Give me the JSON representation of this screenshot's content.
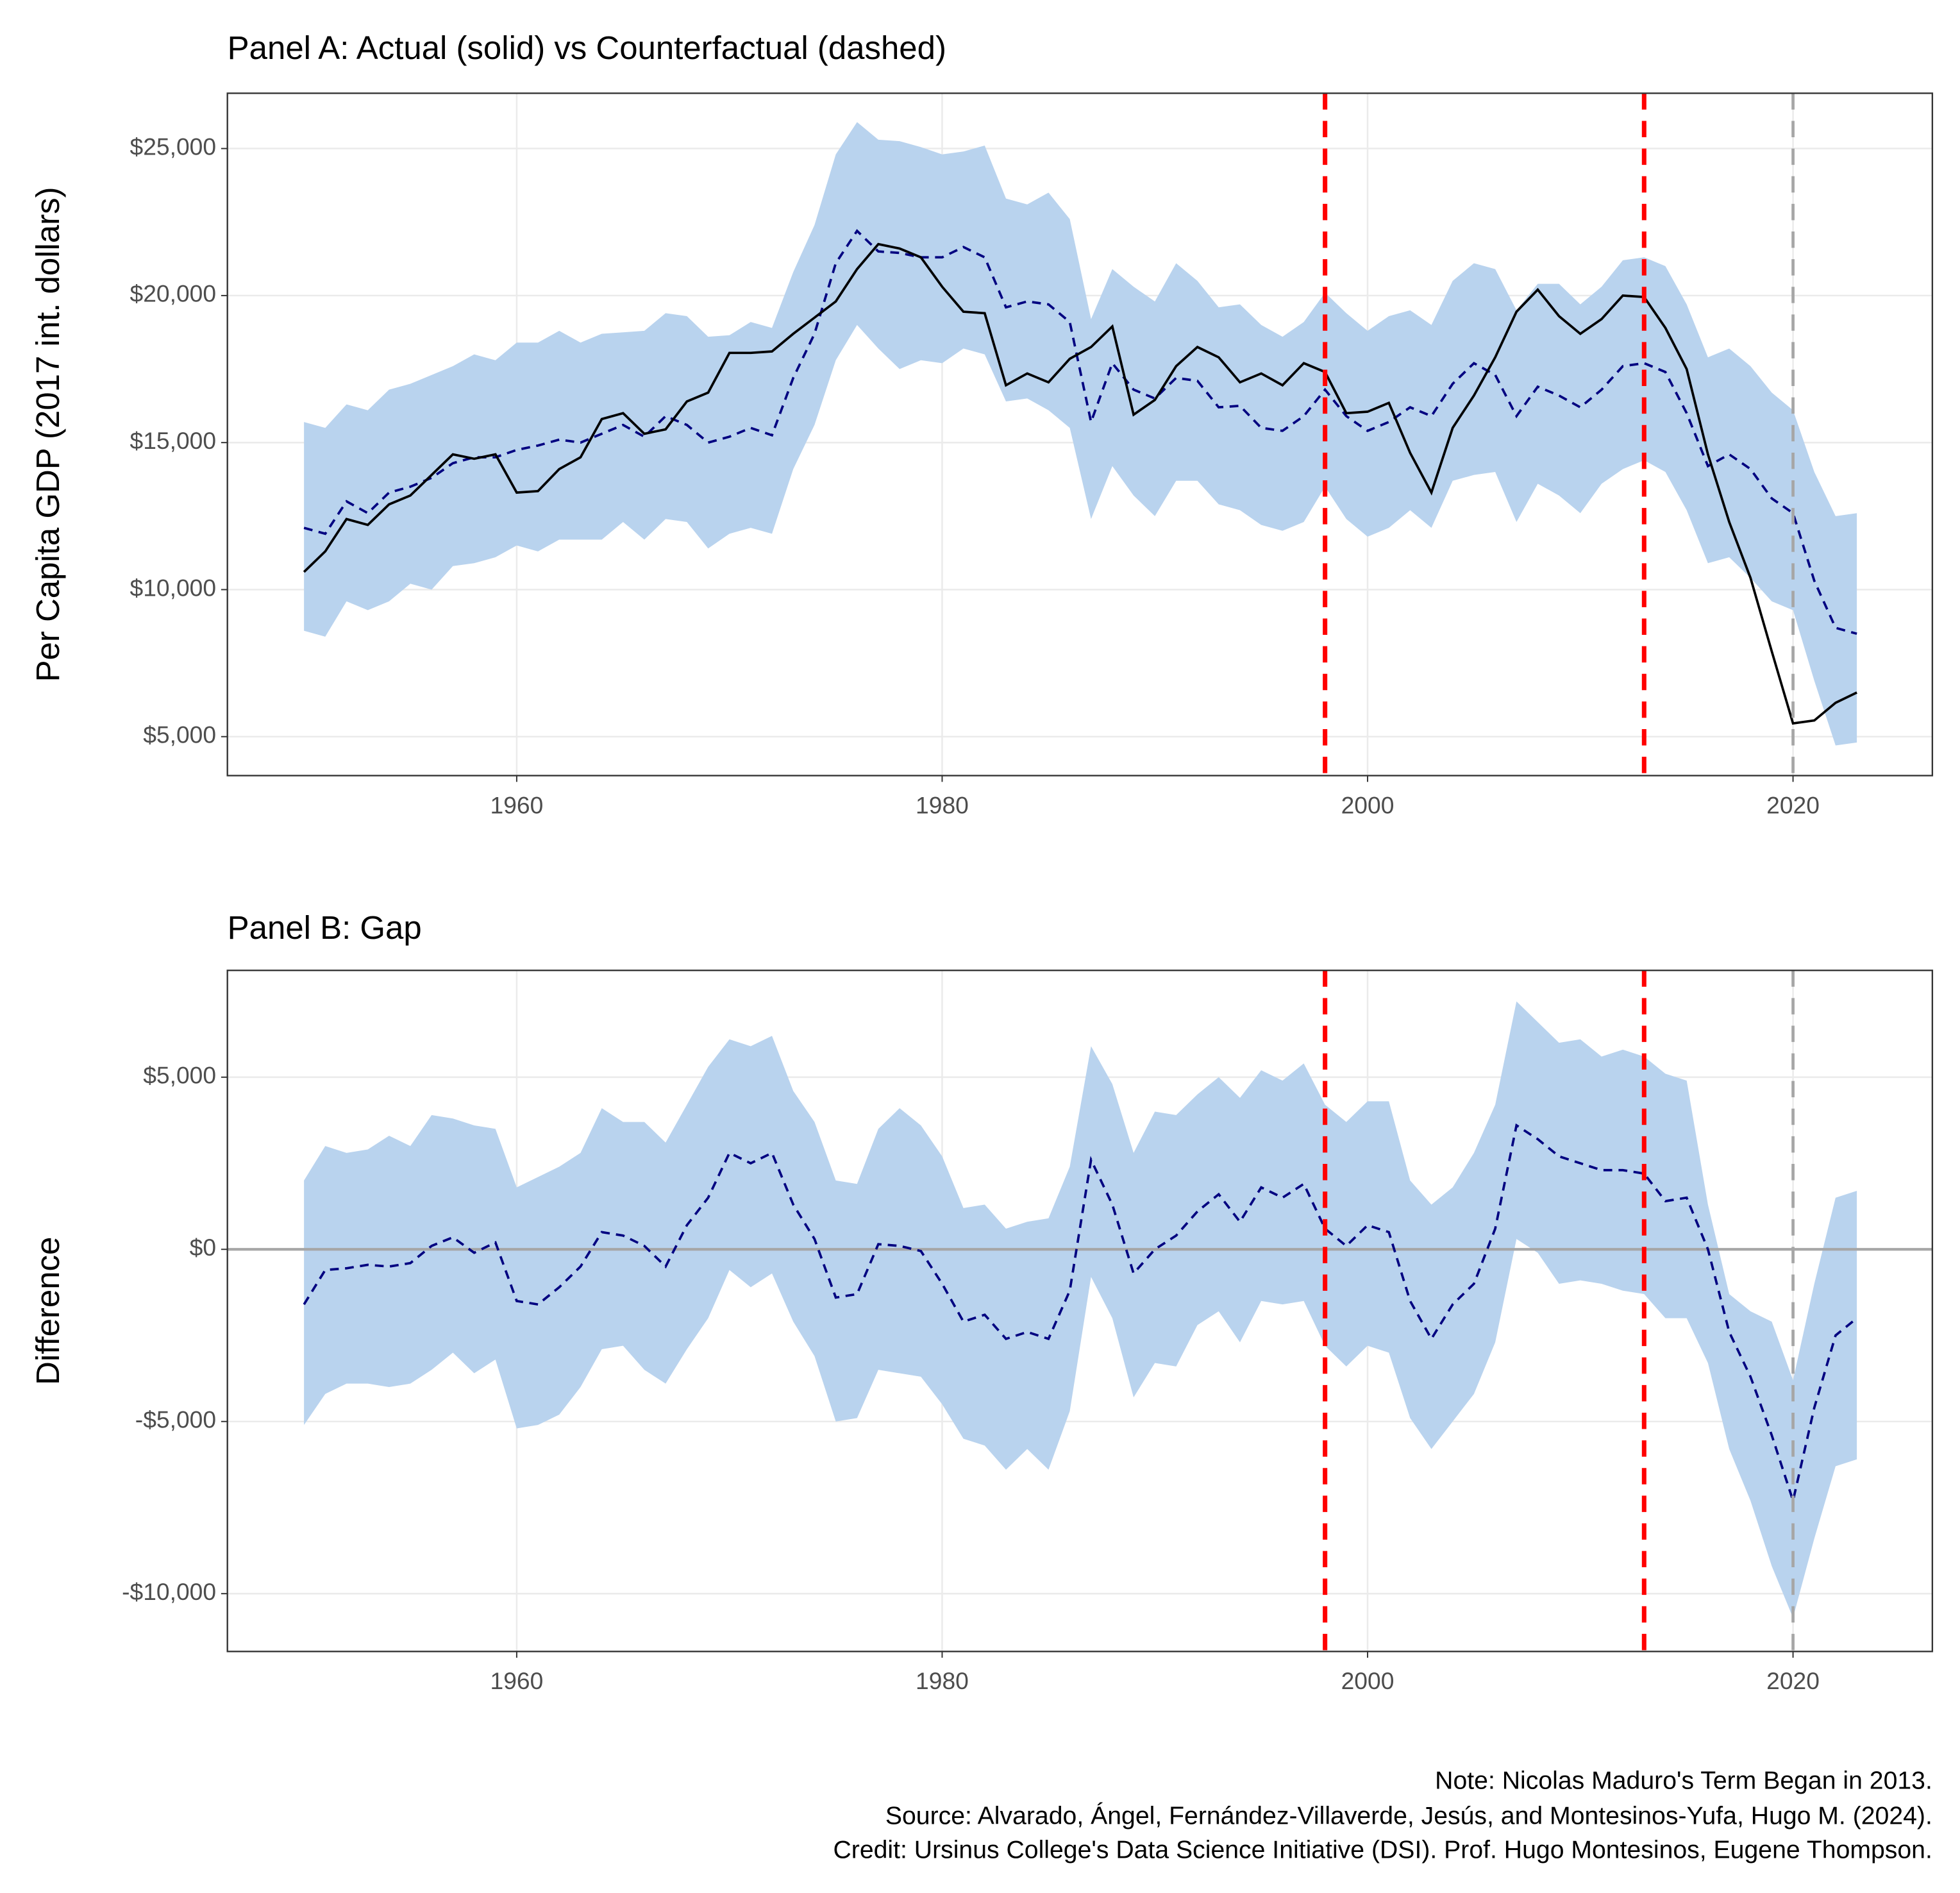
{
  "chart_data": [
    {
      "type": "line",
      "title": "Panel A: Actual (solid) vs Counterfactual (dashed)",
      "y_label": "Per Capita GDP (2017 int. dollars)",
      "x": [
        1950,
        1951,
        1952,
        1953,
        1954,
        1955,
        1956,
        1957,
        1958,
        1959,
        1960,
        1961,
        1962,
        1963,
        1964,
        1965,
        1966,
        1967,
        1968,
        1969,
        1970,
        1971,
        1972,
        1973,
        1974,
        1975,
        1976,
        1977,
        1978,
        1979,
        1980,
        1981,
        1982,
        1983,
        1984,
        1985,
        1986,
        1987,
        1988,
        1989,
        1990,
        1991,
        1992,
        1993,
        1994,
        1995,
        1996,
        1997,
        1998,
        1999,
        2000,
        2001,
        2002,
        2003,
        2004,
        2005,
        2006,
        2007,
        2008,
        2009,
        2010,
        2011,
        2012,
        2013,
        2014,
        2015,
        2016,
        2017,
        2018,
        2019,
        2020,
        2021,
        2022,
        2023
      ],
      "band": {
        "color": "#b9d3ee",
        "upper": [
          15700,
          15500,
          16300,
          16100,
          16800,
          17000,
          17300,
          17600,
          18000,
          17800,
          18400,
          18400,
          18800,
          18400,
          18700,
          18750,
          18800,
          19400,
          19300,
          18600,
          18650,
          19100,
          18900,
          20800,
          22400,
          24800,
          25900,
          25300,
          25250,
          25050,
          24800,
          24900,
          25100,
          23300,
          23100,
          23500,
          22600,
          19200,
          20900,
          20300,
          19800,
          21100,
          20500,
          19600,
          19700,
          19000,
          18600,
          19100,
          20100,
          19400,
          18800,
          19300,
          19500,
          19000,
          20500,
          21100,
          20900,
          19500,
          20400,
          20400,
          19700,
          20300,
          21200,
          21300,
          21000,
          19700,
          17900,
          18200,
          17600,
          16700,
          16100,
          14000,
          12500,
          12600
        ],
        "lower": [
          8600,
          8400,
          9600,
          9300,
          9600,
          10200,
          10000,
          10800,
          10900,
          11100,
          11500,
          11300,
          11700,
          11700,
          11700,
          12300,
          11700,
          12400,
          12300,
          11400,
          11900,
          12100,
          11900,
          14100,
          15600,
          17800,
          19000,
          18200,
          17500,
          17800,
          17700,
          18200,
          18000,
          16400,
          16500,
          16100,
          15500,
          12400,
          14200,
          13200,
          12500,
          13700,
          13700,
          12900,
          12700,
          12200,
          12000,
          12300,
          13500,
          12400,
          11800,
          12100,
          12700,
          12100,
          13700,
          13900,
          14000,
          12300,
          13600,
          13200,
          12600,
          13600,
          14100,
          14400,
          14000,
          12700,
          10900,
          11100,
          10400,
          9600,
          9300,
          6900,
          4700,
          4800
        ]
      },
      "series": [
        {
          "color": "#000080",
          "dashed": true,
          "values": [
            12100,
            11900,
            13000,
            12600,
            13300,
            13500,
            13800,
            14300,
            14500,
            14500,
            14750,
            14900,
            15100,
            15000,
            15300,
            15600,
            15200,
            15900,
            15600,
            15000,
            15200,
            15500,
            15250,
            17200,
            18700,
            21100,
            22200,
            21500,
            21450,
            21300,
            21300,
            21650,
            21300,
            19600,
            19800,
            19700,
            19100,
            15700,
            17700,
            16800,
            16500,
            17200,
            17100,
            16200,
            16250,
            15500,
            15400,
            15900,
            16800,
            15900,
            15400,
            15700,
            16200,
            15900,
            17000,
            17700,
            17300,
            15900,
            16900,
            16600,
            16200,
            16800,
            17600,
            17700,
            17400,
            16000,
            14200,
            14600,
            14100,
            13100,
            12600,
            10300,
            8700,
            8500
          ]
        },
        {
          "color": "#000000",
          "dashed": false,
          "values": [
            10600,
            11300,
            12400,
            12200,
            12900,
            13200,
            13900,
            14600,
            14450,
            14600,
            13300,
            13350,
            14100,
            14500,
            15800,
            16000,
            15300,
            15450,
            16400,
            16700,
            18050,
            18050,
            18100,
            18700,
            19250,
            19800,
            20900,
            21750,
            21600,
            21300,
            20300,
            19450,
            19400,
            16950,
            17350,
            17050,
            17850,
            18250,
            18950,
            15950,
            16450,
            17600,
            18250,
            17900,
            17050,
            17350,
            16950,
            17700,
            17400,
            16000,
            16050,
            16350,
            14650,
            13300,
            15500,
            16600,
            17900,
            19450,
            20200,
            19300,
            18700,
            19200,
            20000,
            19950,
            18900,
            17500,
            14600,
            12300,
            10400,
            7900,
            5450,
            5550,
            6150,
            6500
          ]
        }
      ],
      "vlines": [
        {
          "x": 1998,
          "color": "#ff0000"
        },
        {
          "x": 2013,
          "color": "#ff0000"
        },
        {
          "x": 2020,
          "color": "#a6a6a6"
        }
      ],
      "xlim": [
        1946.4,
        2026.55
      ],
      "xticks": [
        1960,
        1980,
        2000,
        2020
      ],
      "ylim": [
        3675,
        26880
      ],
      "yticks": [
        {
          "value": 5000,
          "label": "$5,000"
        },
        {
          "value": 10000,
          "label": "$10,000"
        },
        {
          "value": 15000,
          "label": "$15,000"
        },
        {
          "value": 20000,
          "label": "$20,000"
        },
        {
          "value": 25000,
          "label": "$25,000"
        }
      ],
      "grid": true
    },
    {
      "type": "line",
      "title": "Panel B: Gap",
      "y_label": "Difference",
      "x": [
        1950,
        1951,
        1952,
        1953,
        1954,
        1955,
        1956,
        1957,
        1958,
        1959,
        1960,
        1961,
        1962,
        1963,
        1964,
        1965,
        1966,
        1967,
        1968,
        1969,
        1970,
        1971,
        1972,
        1973,
        1974,
        1975,
        1976,
        1977,
        1978,
        1979,
        1980,
        1981,
        1982,
        1983,
        1984,
        1985,
        1986,
        1987,
        1988,
        1989,
        1990,
        1991,
        1992,
        1993,
        1994,
        1995,
        1996,
        1997,
        1998,
        1999,
        2000,
        2001,
        2002,
        2003,
        2004,
        2005,
        2006,
        2007,
        2008,
        2009,
        2010,
        2011,
        2012,
        2013,
        2014,
        2015,
        2016,
        2017,
        2018,
        2019,
        2020,
        2021,
        2022,
        2023
      ],
      "band": {
        "color": "#b9d3ee",
        "upper": [
          2000,
          3000,
          2800,
          2900,
          3300,
          3000,
          3900,
          3800,
          3600,
          3500,
          1800,
          2100,
          2400,
          2800,
          4100,
          3700,
          3700,
          3100,
          4200,
          5300,
          6100,
          5900,
          6200,
          4600,
          3700,
          2000,
          1900,
          3500,
          4100,
          3600,
          2700,
          1200,
          1300,
          600,
          800,
          900,
          2400,
          5900,
          4800,
          2800,
          4000,
          3900,
          4500,
          5000,
          4400,
          5200,
          4900,
          5400,
          4200,
          3700,
          4300,
          4300,
          2000,
          1300,
          1800,
          2800,
          4200,
          7200,
          6600,
          6000,
          6100,
          5600,
          5800,
          5600,
          5100,
          4900,
          1300,
          -1300,
          -1800,
          -2100,
          -3800,
          -1000,
          1500,
          1700
        ],
        "lower": [
          -5100,
          -4200,
          -3900,
          -3900,
          -4000,
          -3900,
          -3500,
          -3000,
          -3600,
          -3200,
          -5200,
          -5100,
          -4800,
          -4000,
          -2900,
          -2800,
          -3500,
          -3900,
          -2900,
          -2000,
          -600,
          -1100,
          -700,
          -2100,
          -3100,
          -5000,
          -4900,
          -3500,
          -3600,
          -3700,
          -4500,
          -5500,
          -5700,
          -6400,
          -5800,
          -6400,
          -4700,
          -800,
          -2000,
          -4300,
          -3300,
          -3400,
          -2200,
          -1800,
          -2700,
          -1500,
          -1600,
          -1500,
          -2800,
          -3400,
          -2800,
          -3000,
          -4900,
          -5800,
          -5000,
          -4200,
          -2700,
          300,
          -100,
          -1000,
          -900,
          -1000,
          -1200,
          -1300,
          -2000,
          -2000,
          -3300,
          -5800,
          -7300,
          -9200,
          -10700,
          -8400,
          -6300,
          -6100
        ]
      },
      "series": [
        {
          "color": "#000080",
          "dashed": true,
          "values": [
            -1600,
            -600,
            -550,
            -450,
            -500,
            -400,
            100,
            350,
            -100,
            200,
            -1500,
            -1600,
            -1100,
            -500,
            500,
            400,
            100,
            -500,
            700,
            1500,
            2800,
            2500,
            2800,
            1300,
            300,
            -1400,
            -1300,
            150,
            100,
            -50,
            -1000,
            -2100,
            -1900,
            -2600,
            -2400,
            -2600,
            -1200,
            2600,
            1300,
            -700,
            0,
            400,
            1100,
            1600,
            800,
            1800,
            1500,
            1900,
            600,
            100,
            700,
            500,
            -1500,
            -2600,
            -1600,
            -1000,
            600,
            3600,
            3200,
            2700,
            2500,
            2300,
            2300,
            2200,
            1400,
            1500,
            0,
            -2400,
            -3700,
            -5400,
            -7300,
            -4600,
            -2500,
            -2000
          ]
        }
      ],
      "hline": {
        "y": 0,
        "color": "#a6a6a6"
      },
      "vlines": [
        {
          "x": 1998,
          "color": "#ff0000"
        },
        {
          "x": 2013,
          "color": "#ff0000"
        },
        {
          "x": 2020,
          "color": "#a6a6a6"
        }
      ],
      "xlim": [
        1946.4,
        2026.55
      ],
      "xticks": [
        1960,
        1980,
        2000,
        2020
      ],
      "ylim": [
        -11679,
        8102
      ],
      "yticks": [
        {
          "value": -10000,
          "label": "-$10,000"
        },
        {
          "value": -5000,
          "label": "-$5,000"
        },
        {
          "value": 0,
          "label": "$0"
        },
        {
          "value": 5000,
          "label": "$5,000"
        }
      ],
      "grid": true
    }
  ],
  "caption": [
    "Note: Nicolas Maduro's Term Began in 2013.",
    "Source: Alvarado, Ángel, Fernández-Villaverde, Jesús, and Montesinos-Yufa, Hugo M. (2024).",
    "Credit: Ursinus College's Data Science Initiative (DSI). Prof. Hugo Montesinos, Eugene Thompson."
  ]
}
